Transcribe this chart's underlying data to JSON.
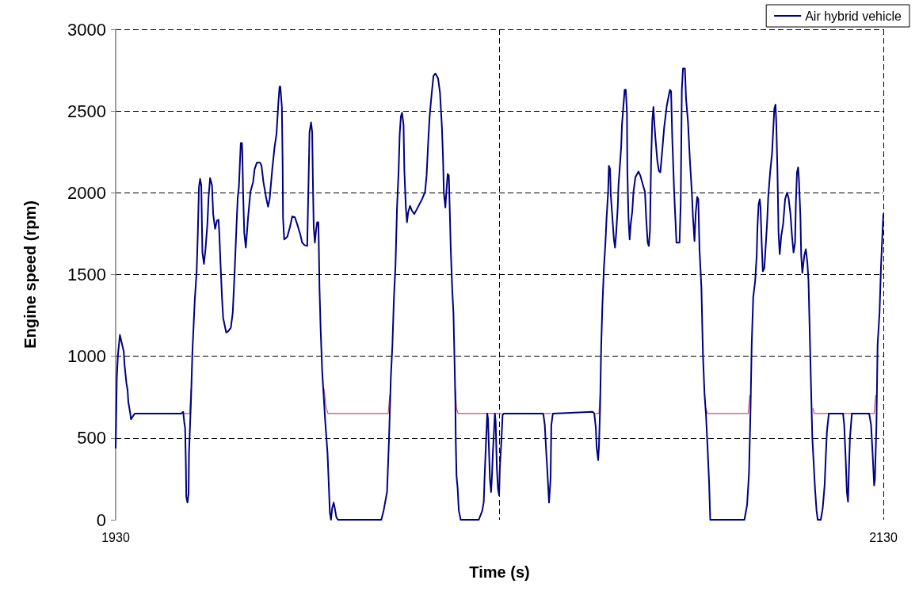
{
  "chart_data": {
    "type": "line",
    "xlabel": "Time (s)",
    "ylabel": "Engine speed (rpm)",
    "xlim": [
      1930,
      2130
    ],
    "xticks": [
      1930,
      {
        "value": 2030,
        "label": null
      },
      2130
    ],
    "ylim": [
      0,
      3000
    ],
    "yticks": [
      0,
      500,
      1000,
      1500,
      2000,
      2500,
      3000
    ],
    "grid": true,
    "legend": "top right",
    "marker": "none",
    "line_style": "solid",
    "series": [
      {
        "color": "#b4557a",
        "x": [
          1947.9,
          1948.5,
          1949.3,
          1949.6,
          1949.8,
          1984.3,
          1984.8,
          1985.3,
          2001.0,
          2001.4,
          2001.5,
          2018.5,
          2018.8,
          2019.2,
          2030.5,
          2030.6,
          2041.8,
          2043.3,
          2043.4,
          2055.1,
          2055.9,
          2056.2,
          2056.3,
          2083.4,
          2083.8,
          2084.2,
          2094.8,
          2095.2,
          2095.3,
          2111.3,
          2111.7,
          2112.0,
          2127.6,
          2128.0
        ],
        "values": [
          650,
          650,
          650,
          795,
          null,
          800,
          690,
          650,
          650,
          760,
          null,
          800,
          680,
          650,
          650,
          null,
          650,
          650,
          null,
          650,
          650,
          760,
          null,
          null,
          680,
          650,
          650,
          760,
          null,
          null,
          680,
          650,
          650,
          760
        ]
      },
      {
        "name": "Air hybrid vehicle",
        "color": "#000080",
        "x": [
          1930.0,
          1930.3,
          1930.6,
          1931.1,
          1931.4,
          1932.1,
          1932.3,
          1932.8,
          1933.1,
          1933.3,
          1933.8,
          1934.0,
          1934.4,
          1935.0,
          1947.1,
          1947.6,
          1947.9,
          1948.1,
          1948.3,
          1948.4,
          1948.7,
          1949.0,
          1949.1,
          1949.6,
          1950.0,
          1950.6,
          1951.1,
          1951.4,
          1951.7,
          1952.0,
          1952.3,
          1952.6,
          1953.0,
          1953.4,
          1953.9,
          1954.2,
          1954.6,
          1955.1,
          1955.4,
          1955.9,
          1956.4,
          1956.8,
          1957.0,
          1957.3,
          1957.7,
          1958.0,
          1958.8,
          1959.4,
          1960.0,
          1960.5,
          1961.0,
          1961.5,
          1961.8,
          1962.1,
          1962.4,
          1962.6,
          1962.9,
          1963.0,
          1963.2,
          1963.5,
          1963.9,
          1964.2,
          1964.5,
          1965.1,
          1965.8,
          1966.2,
          1966.8,
          1967.6,
          1968.0,
          1968.5,
          1969.2,
          1969.7,
          1970.1,
          1970.8,
          1971.4,
          1971.9,
          1972.4,
          1972.7,
          1972.9,
          1973.3,
          1973.5,
          1973.6,
          1973.9,
          1974.7,
          1975.4,
          1976.0,
          1976.7,
          1977.4,
          1978.1,
          1978.6,
          1979.2,
          1979.9,
          1980.0,
          1980.3,
          1980.5,
          1980.9,
          1981.2,
          1981.4,
          1981.6,
          1981.9,
          1982.2,
          1982.5,
          1982.8,
          1982.9,
          1983.1,
          1983.4,
          1983.8,
          1984.2,
          1984.6,
          1985.2,
          1985.6,
          1985.8,
          1986.1,
          1986.4,
          1986.8,
          1987.1,
          1987.5,
          1987.9,
          1999.2,
          1999.8,
          2000.7,
          2001.2,
          2001.7,
          2002.1,
          2002.5,
          2002.9,
          2003.3,
          2003.7,
          2004.0,
          2004.3,
          2004.6,
          2005.0,
          2005.2,
          2005.6,
          2005.9,
          2006.2,
          2006.7,
          2007.2,
          2007.8,
          2008.7,
          2009.8,
          2010.6,
          2011.0,
          2011.4,
          2011.8,
          2012.3,
          2012.8,
          2013.3,
          2014.0,
          2014.5,
          2015.0,
          2015.3,
          2015.5,
          2015.9,
          2016.1,
          2016.5,
          2016.8,
          2017.0,
          2017.3,
          2017.7,
          2018.0,
          2018.3,
          2018.5,
          2018.6,
          2018.8,
          2019.1,
          2019.4,
          2019.9,
          2024.6,
          2025.5,
          2025.9,
          2026.1,
          2026.5,
          2026.8,
          2027.0,
          2027.5,
          2027.8,
          2028.0,
          2028.3,
          2028.8,
          2029.0,
          2029.3,
          2029.6,
          2029.9,
          2030.1,
          2030.5,
          2030.8,
          2031.1,
          2041.4,
          2041.8,
          2042.1,
          2042.4,
          2042.8,
          2042.9,
          2043.3,
          2043.5,
          2043.9,
          2054.3,
          2054.7,
          2055.1,
          2055.3,
          2055.7,
          2055.9,
          2056.2,
          2056.5,
          2056.8,
          2057.2,
          2057.6,
          2057.9,
          2058.3,
          2058.5,
          2058.8,
          2059.0,
          2059.4,
          2059.8,
          2060.1,
          2060.4,
          2060.8,
          2061.0,
          2061.3,
          2061.7,
          2061.9,
          2062.3,
          2062.6,
          2062.9,
          2063.2,
          2063.3,
          2063.6,
          2063.9,
          2064.2,
          2064.6,
          2064.9,
          2065.4,
          2066.2,
          2066.7,
          2067.4,
          2067.9,
          2068.2,
          2068.6,
          2068.9,
          2069.2,
          2069.5,
          2069.8,
          2070.1,
          2070.3,
          2070.6,
          2071.1,
          2071.5,
          2071.9,
          2072.4,
          2072.9,
          2073.6,
          2074.1,
          2074.4,
          2074.7,
          2075.0,
          2075.5,
          2075.8,
          2076.1,
          2076.9,
          2077.2,
          2077.5,
          2077.8,
          2078.3,
          2078.6,
          2079.1,
          2079.6,
          2080.1,
          2080.4,
          2080.8,
          2081.1,
          2081.5,
          2081.8,
          2082.1,
          2082.6,
          2083.0,
          2083.4,
          2083.8,
          2084.2,
          2084.6,
          2084.9,
          2093.8,
          2094.5,
          2095.0,
          2095.4,
          2095.7,
          2096.1,
          2096.6,
          2097.0,
          2097.2,
          2097.5,
          2097.8,
          2098.0,
          2098.3,
          2098.6,
          2099.0,
          2099.4,
          2099.7,
          2100.0,
          2100.5,
          2101.0,
          2101.3,
          2101.6,
          2101.9,
          2102.1,
          2102.4,
          2102.7,
          2103.0,
          2103.4,
          2103.9,
          2104.4,
          2104.9,
          2105.3,
          2105.8,
          2106.2,
          2106.6,
          2107.0,
          2107.2,
          2107.5,
          2107.8,
          2108.0,
          2108.4,
          2108.6,
          2108.9,
          2109.4,
          2109.8,
          2110.2,
          2110.5,
          2110.9,
          2111.2,
          2111.5,
          2111.9,
          2112.2,
          2112.6,
          2112.9,
          2113.7,
          2114.2,
          2114.7,
          2115.0,
          2115.3,
          2115.8,
          2119.5,
          2119.8,
          2120.2,
          2120.5,
          2120.8,
          2121.0,
          2121.3,
          2121.8,
          2126.3,
          2126.8,
          2127.2,
          2127.6,
          2127.8,
          2128.2,
          2128.5,
          2129.0,
          2129.4,
          2129.8,
          2130.0
        ],
        "values": [
          440,
          870,
          1010,
          1130,
          1100,
          1030,
          950,
          835,
          795,
          720,
          650,
          615,
          630,
          650,
          650,
          660,
          590,
          560,
          325,
          140,
          105,
          160,
          405,
          715,
          1030,
          1340,
          1520,
          1750,
          2035,
          2085,
          2045,
          1635,
          1565,
          1655,
          1810,
          1970,
          2090,
          2045,
          1870,
          1780,
          1830,
          1835,
          1755,
          1575,
          1360,
          1235,
          1145,
          1155,
          1175,
          1265,
          1520,
          1810,
          1970,
          2035,
          2200,
          2305,
          2305,
          2240,
          2005,
          1755,
          1665,
          1755,
          1850,
          2005,
          2065,
          2145,
          2185,
          2185,
          2165,
          2065,
          1970,
          1915,
          1960,
          2145,
          2280,
          2360,
          2555,
          2650,
          2650,
          2525,
          2180,
          1850,
          1715,
          1730,
          1790,
          1855,
          1850,
          1800,
          1745,
          1695,
          1680,
          1675,
          1790,
          2125,
          2370,
          2430,
          2370,
          2045,
          1790,
          1695,
          1770,
          1820,
          1820,
          1715,
          1420,
          1165,
          910,
          755,
          600,
          405,
          170,
          45,
          0,
          70,
          105,
          70,
          15,
          0,
          0,
          55,
          170,
          485,
          875,
          1070,
          1360,
          1555,
          1910,
          2125,
          2360,
          2465,
          2490,
          2415,
          2145,
          1910,
          1820,
          1880,
          1920,
          1890,
          1870,
          1910,
          1960,
          2005,
          2105,
          2300,
          2470,
          2600,
          2715,
          2730,
          2700,
          2610,
          2400,
          2200,
          2000,
          1910,
          1985,
          2115,
          2105,
          1930,
          1655,
          1400,
          1265,
          950,
          725,
          485,
          270,
          190,
          55,
          0,
          0,
          55,
          110,
          250,
          485,
          650,
          620,
          250,
          170,
          250,
          425,
          650,
          600,
          325,
          190,
          150,
          325,
          485,
          640,
          650,
          650,
          580,
          445,
          325,
          150,
          105,
          250,
          580,
          650,
          660,
          650,
          560,
          445,
          365,
          445,
          680,
          1070,
          1305,
          1540,
          1695,
          1850,
          2005,
          2165,
          2145,
          1985,
          1850,
          1715,
          1665,
          1755,
          1910,
          2045,
          2145,
          2280,
          2415,
          2535,
          2630,
          2630,
          2495,
          2145,
          1850,
          1715,
          1810,
          1890,
          2005,
          2095,
          2130,
          2105,
          2045,
          2005,
          1850,
          1695,
          1675,
          1770,
          2200,
          2440,
          2525,
          2440,
          2340,
          2200,
          2135,
          2125,
          2260,
          2400,
          2535,
          2595,
          2630,
          2620,
          2340,
          2005,
          1850,
          1695,
          1695,
          1930,
          2630,
          2760,
          2760,
          2575,
          2435,
          2200,
          2005,
          1850,
          1705,
          1870,
          1975,
          1960,
          1655,
          1420,
          1010,
          775,
          640,
          445,
          230,
          0,
          0,
          90,
          285,
          680,
          1070,
          1360,
          1460,
          1615,
          1790,
          1930,
          1960,
          1910,
          1695,
          1520,
          1540,
          1695,
          1810,
          1970,
          2125,
          2240,
          2380,
          2515,
          2540,
          2435,
          2145,
          1755,
          1625,
          1735,
          1810,
          1960,
          2000,
          1970,
          1870,
          1735,
          1635,
          1695,
          1930,
          2125,
          2155,
          2085,
          1850,
          1615,
          1510,
          1615,
          1655,
          1575,
          1460,
          1070,
          775,
          500,
          325,
          190,
          55,
          0,
          0,
          70,
          210,
          385,
          540,
          650,
          650,
          580,
          365,
          170,
          110,
          285,
          500,
          650,
          650,
          580,
          405,
          210,
          250,
          580,
          1070,
          1265,
          1555,
          1770,
          1870
        ]
      }
    ]
  }
}
